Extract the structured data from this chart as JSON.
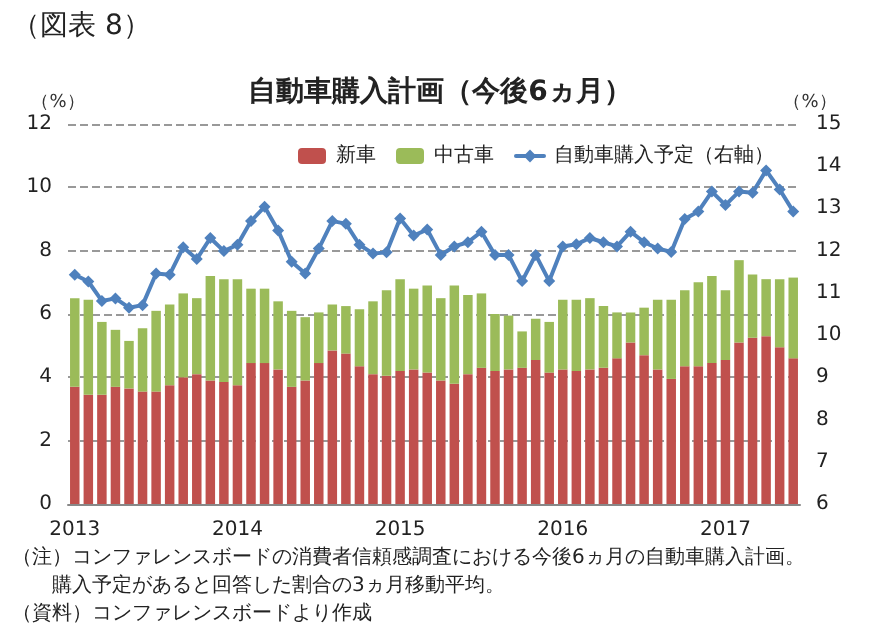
{
  "chart_data": {
    "type": "bar",
    "title": "自動車購入計画（今後6ヵ月）",
    "ylabel": "（%）",
    "y2label": "（%）",
    "annotations": [
      "（図表 8）",
      "（注）コンファレンスボードの消費者信頼感調査における今後6ヵ月の自動車購入計画。",
      "　　購入予定があると回答した割合の3ヵ月移動平均。",
      "（資料）コンファレンスボードより作成"
    ],
    "categories": [
      "2013",
      null,
      null,
      null,
      null,
      null,
      null,
      null,
      null,
      null,
      null,
      null,
      "2014",
      null,
      null,
      null,
      null,
      null,
      null,
      null,
      null,
      null,
      null,
      null,
      "2015",
      null,
      null,
      null,
      null,
      null,
      null,
      null,
      null,
      null,
      null,
      null,
      "2016",
      null,
      null,
      null,
      null,
      null,
      null,
      null,
      null,
      null,
      null,
      null,
      "2017",
      null,
      null,
      null,
      null,
      null
    ],
    "stacked": true,
    "series": [
      {
        "name": "新車",
        "color": "#c0504d",
        "values": [
          3.7,
          3.45,
          3.45,
          3.7,
          3.65,
          3.55,
          3.55,
          3.75,
          4.0,
          4.1,
          3.9,
          3.85,
          3.75,
          4.45,
          4.45,
          4.25,
          3.7,
          3.9,
          4.45,
          4.85,
          4.75,
          4.35,
          4.1,
          4.05,
          4.2,
          4.25,
          4.15,
          3.9,
          3.8,
          4.1,
          4.3,
          4.2,
          4.25,
          4.3,
          4.55,
          4.15,
          4.25,
          4.2,
          4.25,
          4.3,
          4.6,
          5.1,
          4.7,
          4.25,
          3.95,
          4.35,
          4.35,
          4.45,
          4.55,
          5.1,
          5.25,
          5.3,
          4.95,
          4.6
        ]
      },
      {
        "name": "中古車",
        "color": "#9bbb59",
        "values": [
          2.8,
          3.0,
          2.3,
          1.8,
          1.5,
          2.0,
          2.55,
          2.55,
          2.65,
          2.4,
          3.3,
          3.25,
          3.35,
          2.35,
          2.35,
          2.15,
          2.4,
          2.0,
          1.6,
          1.45,
          1.5,
          1.8,
          2.3,
          2.7,
          2.9,
          2.55,
          2.75,
          2.6,
          3.1,
          2.5,
          2.35,
          1.8,
          1.7,
          1.15,
          1.3,
          1.6,
          2.2,
          2.25,
          2.25,
          1.95,
          1.45,
          0.95,
          1.5,
          2.2,
          2.5,
          2.4,
          2.65,
          2.75,
          2.2,
          2.6,
          2.0,
          1.8,
          2.15,
          2.55
        ]
      },
      {
        "name": "自動車購入予定（右軸）",
        "color": "#4f81bd",
        "type": "line",
        "axis": "y2",
        "marker": "diamond",
        "line_style": "solid",
        "values": [
          11.43,
          11.27,
          10.81,
          10.87,
          10.65,
          10.71,
          11.46,
          11.43,
          12.08,
          11.8,
          12.3,
          11.99,
          12.14,
          12.7,
          13.04,
          12.48,
          11.74,
          11.46,
          12.05,
          12.7,
          12.64,
          12.14,
          11.93,
          11.96,
          12.76,
          12.36,
          12.5,
          11.9,
          12.1,
          12.2,
          12.45,
          11.9,
          11.9,
          11.28,
          11.9,
          11.28,
          12.1,
          12.15,
          12.3,
          12.2,
          12.1,
          12.45,
          12.2,
          12.05,
          11.97,
          12.75,
          12.93,
          13.4,
          13.08,
          13.4,
          13.37,
          13.9,
          13.45,
          12.93
        ]
      }
    ],
    "ylim": [
      0,
      12
    ],
    "yticks": [
      0,
      2,
      4,
      6,
      8,
      10,
      12
    ],
    "y2lim": [
      6,
      15
    ],
    "y2ticks": [
      6,
      7,
      8,
      9,
      10,
      11,
      12,
      13,
      14,
      15
    ],
    "grid": "y",
    "legend": "top right"
  }
}
